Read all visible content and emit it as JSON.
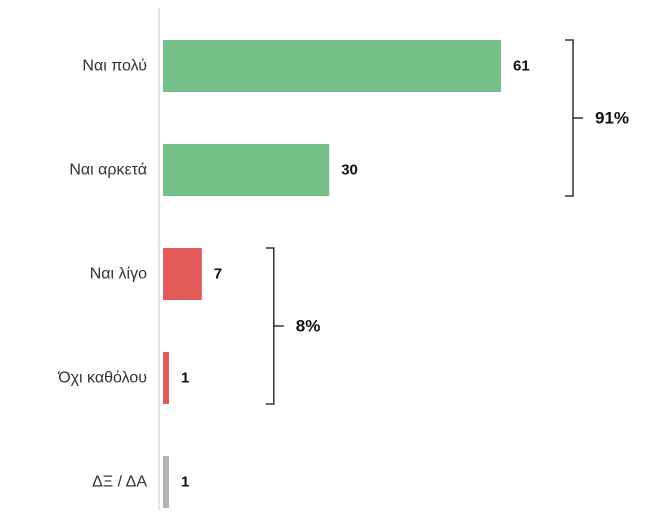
{
  "chart_data": {
    "type": "bar",
    "orientation": "horizontal",
    "categories": [
      "Ναι πολύ",
      "Ναι αρκετά",
      "Ναι λίγο",
      "Όχι καθόλου",
      "ΔΞ / ΔΑ"
    ],
    "values": [
      61,
      30,
      7,
      1,
      1
    ],
    "value_labels": [
      "61",
      "30",
      "7",
      "1",
      "1"
    ],
    "colors": [
      "#74c088",
      "#74c088",
      "#e35a5a",
      "#e35a5a",
      "#b3b3b3"
    ],
    "xlim": [
      0,
      61
    ],
    "grid": false,
    "groups": [
      {
        "label": "91%",
        "from": 0,
        "to": 1
      },
      {
        "label": "8%",
        "from": 2,
        "to": 3
      }
    ]
  },
  "axis_color": "#cccccc",
  "bracket_color": "#333333"
}
